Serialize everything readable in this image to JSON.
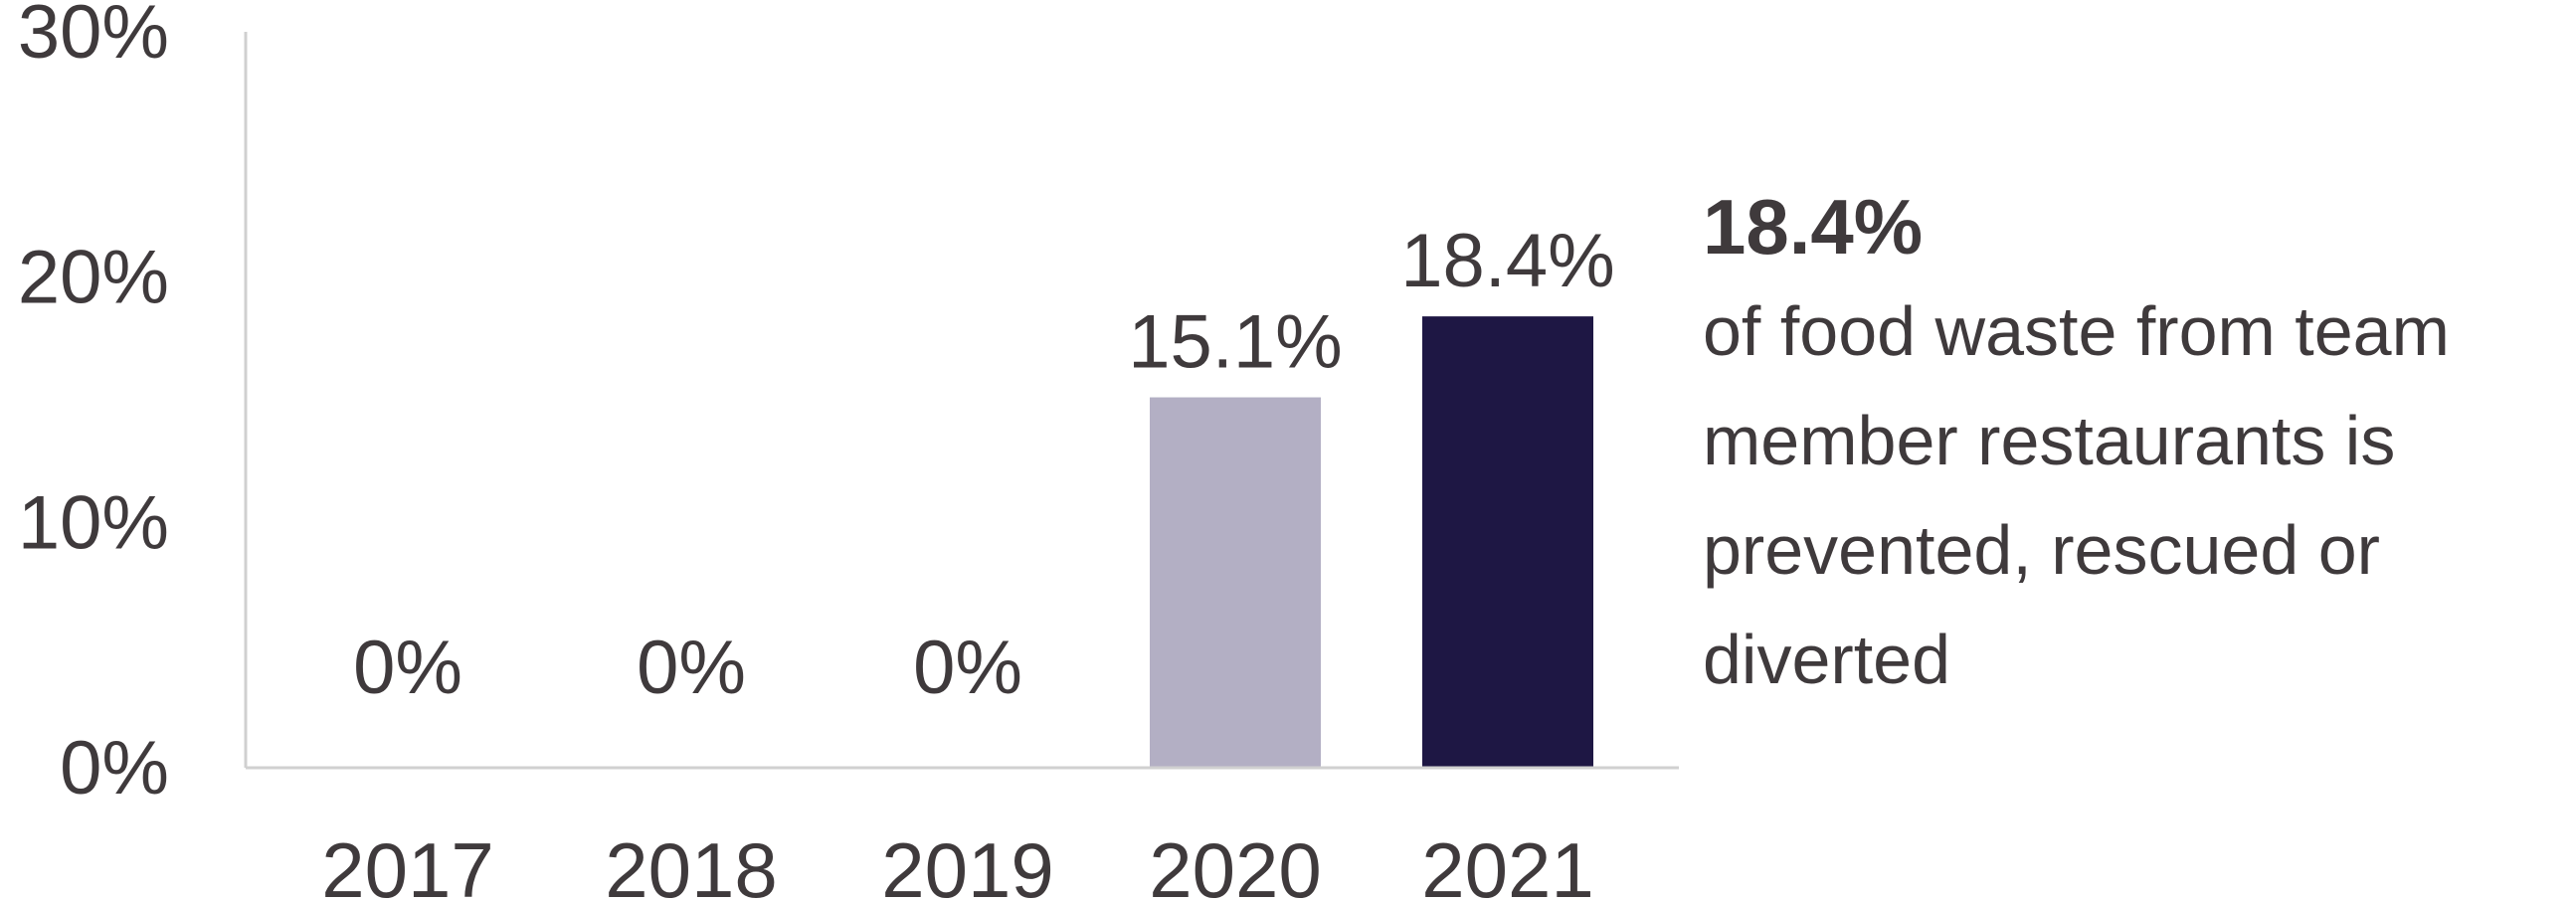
{
  "chart_data": {
    "type": "bar",
    "categories": [
      "2017",
      "2018",
      "2019",
      "2020",
      "2021"
    ],
    "values": [
      0,
      0,
      0,
      15.1,
      18.4
    ],
    "data_labels": [
      "0%",
      "0%",
      "0%",
      "15.1%",
      "18.4%"
    ],
    "bar_colors": [
      "#b3afc4",
      "#b3afc4",
      "#b3afc4",
      "#b3afc4",
      "#1e1744"
    ],
    "ylim": [
      0,
      30
    ],
    "yticks": [
      0,
      10,
      20,
      30
    ],
    "ytick_labels": [
      "0%",
      "10%",
      "20%",
      "30%"
    ],
    "title": "",
    "xlabel": "",
    "ylabel": "",
    "grid": false,
    "axis_color": "#d0d0d0"
  },
  "callout": {
    "value": "18.4%",
    "text": "of food waste from team member restaurants is prevented, rescued or diverted"
  }
}
